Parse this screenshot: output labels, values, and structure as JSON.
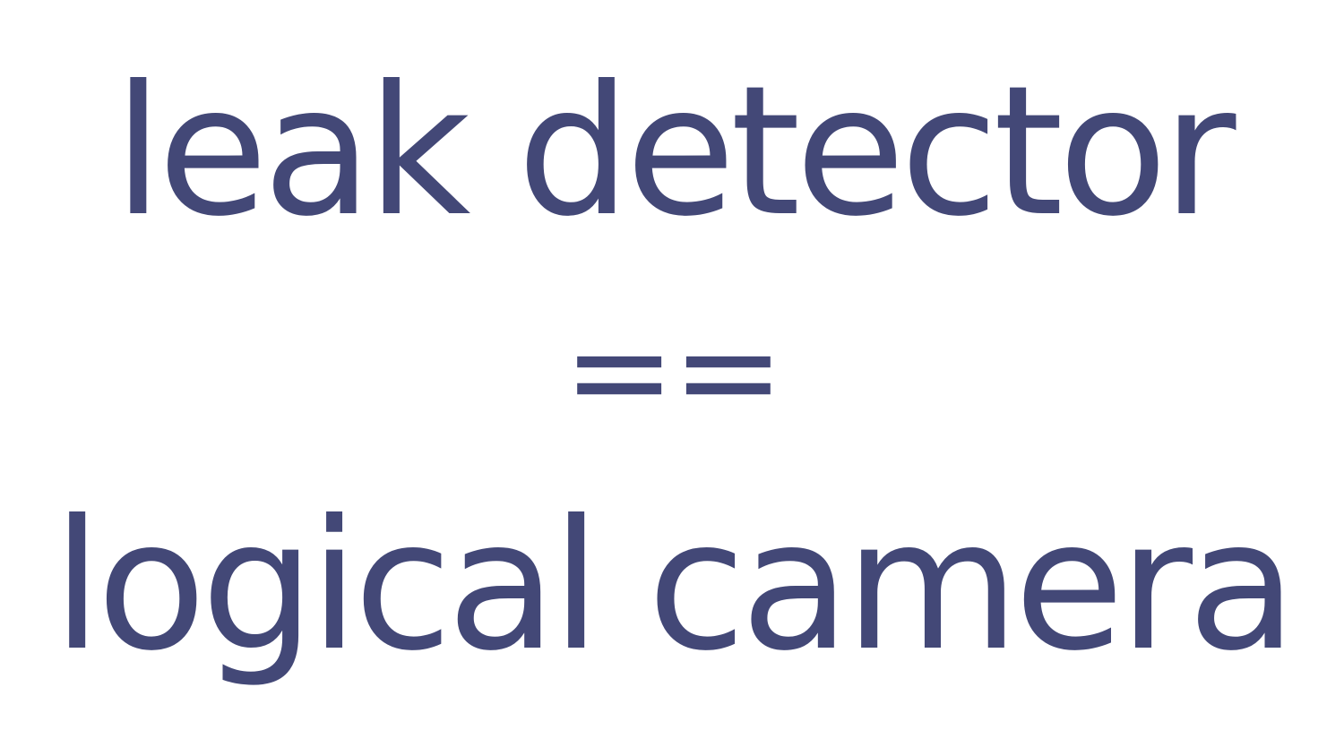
{
  "slide": {
    "line1": "leak detector",
    "line2": "==",
    "line3": "logical camera"
  },
  "colors": {
    "text": "#434877",
    "background": "#ffffff"
  }
}
